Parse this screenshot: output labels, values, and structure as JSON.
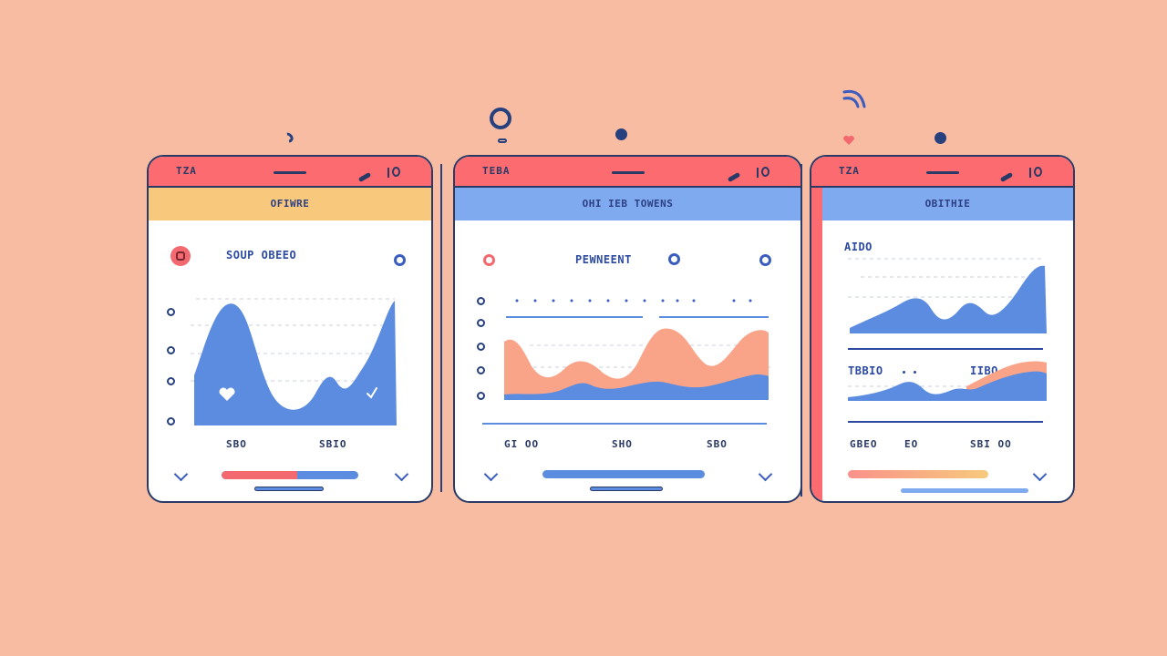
{
  "colors": {
    "background": "#f8bca2",
    "status_bar": "#fb6b70",
    "header_yellow": "#f8c97d",
    "header_blue": "#80aaf0",
    "chart_blue": "#5b8ce0",
    "chart_salmon": "#f9a488",
    "ink": "#2a3a66"
  },
  "screens": [
    {
      "status_time": "TZA",
      "header": "OFIWRE",
      "card_title": "SOUP OBEEO",
      "x_labels": [
        "SBO",
        "SBIO"
      ],
      "icons": [
        "heart-icon",
        "check-icon",
        "chevron-down-icon"
      ],
      "progress": 0.55
    },
    {
      "status_time": "TEBA",
      "header": "OHI IEB TOWENS",
      "card_title": "PEWNEENT",
      "x_labels": [
        "GI OO",
        "SHO",
        "SBO"
      ],
      "icons": [
        "chevron-down-icon"
      ],
      "progress": 1
    },
    {
      "status_time": "TZA",
      "header": "OBITHIE",
      "section_1_title": "AIDO",
      "section_2_title": "TBBIO",
      "section_2_label": "IIBO",
      "x_labels": [
        "GBEO",
        "EO",
        "SBI OO"
      ],
      "icons": [
        "chevron-down-icon"
      ],
      "progress": 1
    }
  ]
}
